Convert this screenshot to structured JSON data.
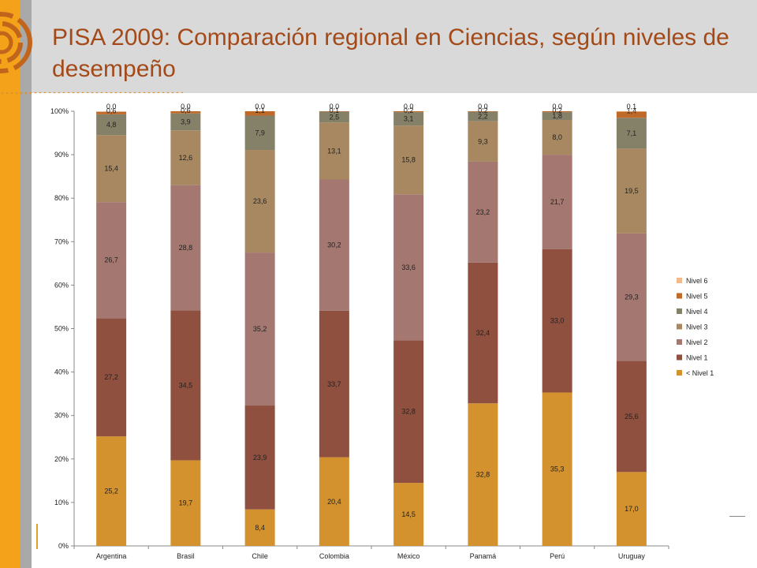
{
  "slide": {
    "title": "PISA 2009: Comparación regional en Ciencias, según niveles de desempeño"
  },
  "colors": {
    "accent_orange": "#f5a21b",
    "title_color": "#a34a18"
  },
  "chart_data": {
    "type": "bar",
    "stacked": true,
    "title": "",
    "xlabel": "",
    "ylabel": "",
    "ylim": [
      0,
      100
    ],
    "y_ticks": [
      "0%",
      "10%",
      "20%",
      "30%",
      "40%",
      "50%",
      "60%",
      "70%",
      "80%",
      "90%",
      "100%"
    ],
    "categories": [
      "Argentina",
      "Brasil",
      "Chile",
      "Colombia",
      "México",
      "Panamá",
      "Perú",
      "Uruguay"
    ],
    "legend_position": "right",
    "series": [
      {
        "name": "< Nivel 1",
        "color": "#d4922e",
        "values": [
          25.2,
          19.7,
          8.4,
          20.4,
          14.5,
          32.8,
          35.3,
          17.0
        ],
        "labels": [
          "25,2",
          "19,7",
          "8,4",
          "20,4",
          "14,5",
          "32,8",
          "35,3",
          "17,0"
        ]
      },
      {
        "name": "Nivel 1",
        "color": "#8f5040",
        "values": [
          27.2,
          34.5,
          23.9,
          33.7,
          32.8,
          32.4,
          33.0,
          25.6
        ],
        "labels": [
          "27,2",
          "34,5",
          "23,9",
          "33,7",
          "32,8",
          "32,4",
          "33,0",
          "25,6"
        ]
      },
      {
        "name": "Nivel 2",
        "color": "#a47870",
        "values": [
          26.7,
          28.8,
          35.2,
          30.2,
          33.6,
          23.2,
          21.7,
          29.3
        ],
        "labels": [
          "26,7",
          "28,8",
          "35,2",
          "30,2",
          "33,6",
          "23,2",
          "21,7",
          "29,3"
        ]
      },
      {
        "name": "Nivel 3",
        "color": "#a78860",
        "values": [
          15.4,
          12.6,
          23.6,
          13.1,
          15.8,
          9.3,
          8.0,
          19.5
        ],
        "labels": [
          "15,4",
          "12,6",
          "23,6",
          "13,1",
          "15,8",
          "9,3",
          "8,0",
          "19,5"
        ]
      },
      {
        "name": "Nivel 4",
        "color": "#858068",
        "values": [
          4.8,
          3.9,
          7.9,
          2.5,
          3.1,
          2.2,
          1.8,
          7.1
        ],
        "labels": [
          "4,8",
          "3,9",
          "7,9",
          "2,5",
          "3,1",
          "2,2",
          "1,8",
          "7,1"
        ]
      },
      {
        "name": "Nivel 5",
        "color": "#c06a2a",
        "values": [
          0.6,
          0.6,
          1.1,
          0.1,
          0.2,
          0.2,
          0.2,
          1.4
        ],
        "labels": [
          "0,6",
          "0,6",
          "1,1",
          "0,1",
          "0,2",
          "0,2",
          "0,2",
          "1,4"
        ]
      },
      {
        "name": "Nivel 6",
        "color": "#f2b98a",
        "values": [
          0.0,
          0.0,
          0.0,
          0.0,
          0.0,
          0.0,
          0.0,
          0.1
        ],
        "labels": [
          "0,0",
          "0,0",
          "0,0",
          "0,0",
          "0,0",
          "0,0",
          "0,0",
          "0,1"
        ]
      }
    ]
  }
}
